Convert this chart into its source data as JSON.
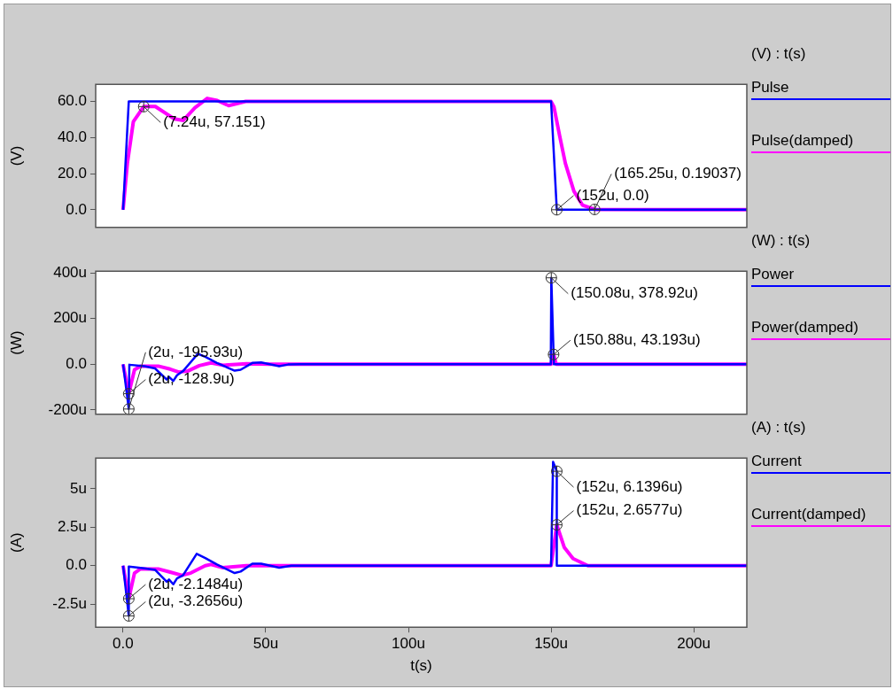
{
  "chart_data": [
    {
      "type": "line",
      "ylabel": "(V)",
      "legend_title": "(V) : t(s)",
      "legend": "right",
      "tick_labels": "y",
      "xlim": [
        -9.6,
        218.6
      ],
      "ylim": [
        -9.8,
        69.5
      ],
      "yticks": [
        {
          "value": 0,
          "label": "0.0"
        },
        {
          "value": 20,
          "label": "20.0"
        },
        {
          "value": 40,
          "label": "40.0"
        },
        {
          "value": 60,
          "label": "60.0"
        }
      ],
      "series": [
        {
          "name": "Pulse",
          "color": "#0000ff",
          "x": [
            0,
            2,
            150,
            152,
            218.6
          ],
          "values": [
            0,
            60,
            60,
            0,
            0
          ]
        },
        {
          "name": "Pulse(damped)",
          "color": "#ff00ff",
          "x": [
            0,
            1.5,
            3.6,
            7.24,
            11.3,
            18,
            21.1,
            25.2,
            29.5,
            33,
            37,
            43,
            150,
            151,
            153,
            155,
            158,
            161,
            165.25,
            218.6
          ],
          "values": [
            0,
            25.7,
            48.8,
            57.151,
            57.2,
            50.3,
            49.5,
            56.5,
            61.7,
            60.5,
            57.7,
            60,
            60,
            57,
            41,
            25.7,
            10.3,
            2.6,
            0.19037,
            0
          ]
        }
      ],
      "annotations": [
        {
          "text": "(7.24u, 57.151)",
          "x": 7.24,
          "y": 57.151
        },
        {
          "text": "(152u, 0.0)",
          "x": 152,
          "y": 0
        },
        {
          "text": "(165.25u, 0.19037)",
          "x": 165.25,
          "y": 0.19037
        }
      ]
    },
    {
      "type": "line",
      "ylabel": "(W)",
      "legend_title": "(W) : t(s)",
      "legend": "right",
      "tick_labels": "y",
      "xlim": [
        -9.6,
        218.6
      ],
      "ylim": [
        -219,
        408
      ],
      "yticks": [
        {
          "value": -200,
          "label": "-200u"
        },
        {
          "value": 0,
          "label": "0.0"
        },
        {
          "value": 200,
          "label": "200u"
        },
        {
          "value": 400,
          "label": "400u"
        }
      ],
      "series": [
        {
          "name": "Power",
          "color": "#0000ff",
          "x": [
            0,
            2,
            2.2,
            7.5,
            11.2,
            15.3,
            16.1,
            17.6,
            18.9,
            21,
            26.2,
            28.8,
            32.9,
            39.1,
            41.2,
            45.3,
            48.4,
            54.7,
            57.8,
            62,
            149.9,
            150.08,
            150.88,
            151,
            218.6
          ],
          "values": [
            0,
            -195.93,
            -2,
            -8,
            -18,
            -67,
            -55,
            -73,
            -48,
            -30,
            46,
            33,
            6,
            -28,
            -24,
            6,
            8,
            -8,
            -1,
            0,
            0,
            378.92,
            43.193,
            0,
            0
          ]
        },
        {
          "name": "Power(damped)",
          "color": "#ff00ff",
          "x": [
            0,
            2,
            4,
            6.1,
            12.3,
            16.5,
            19.5,
            22.6,
            26.7,
            30.8,
            35,
            43.2,
            51.5,
            150,
            150.88,
            151.8,
            218.6
          ],
          "values": [
            0,
            -128.9,
            -24,
            -8,
            -8,
            -21,
            -34,
            -30,
            -6,
            6,
            -4,
            2,
            0,
            0,
            43.193,
            0,
            0
          ]
        }
      ],
      "annotations": [
        {
          "text": "(150.08u, 378.92u)",
          "x": 150.08,
          "y": 378.92
        },
        {
          "text": "(150.88u, 43.193u)",
          "x": 150.88,
          "y": 43.193
        },
        {
          "text": "(2u, -128.9u)",
          "x": 2,
          "y": -128.9
        },
        {
          "text": "(2u, -195.93u)",
          "x": 2,
          "y": -195.93
        }
      ]
    },
    {
      "type": "line",
      "ylabel": "(A)",
      "xlabel": "t(s)",
      "legend_title": "(A) : t(s)",
      "legend": "right",
      "xlim": [
        -9.6,
        218.6
      ],
      "ylim": [
        -4,
        7
      ],
      "xticks": [
        {
          "value": 0,
          "label": "0.0"
        },
        {
          "value": 50,
          "label": "50u"
        },
        {
          "value": 100,
          "label": "100u"
        },
        {
          "value": 150,
          "label": "150u"
        },
        {
          "value": 200,
          "label": "200u"
        }
      ],
      "yticks": [
        {
          "value": -2.5,
          "label": "-2.5u"
        },
        {
          "value": 0,
          "label": "0.0"
        },
        {
          "value": 2.5,
          "label": "2.5u"
        },
        {
          "value": 5,
          "label": "5u"
        }
      ],
      "series": [
        {
          "name": "Current",
          "color": "#0000ff",
          "x": [
            0,
            2,
            2,
            7.5,
            11.2,
            15.3,
            16.1,
            17.6,
            18.9,
            21,
            25.8,
            28.8,
            32.9,
            39.1,
            41.2,
            45.3,
            48.4,
            54.7,
            59,
            62,
            150,
            150.7,
            152,
            152,
            218.6
          ],
          "values": [
            0,
            -3.2656,
            -0.06,
            -0.17,
            -0.27,
            -1.04,
            -0.9,
            -1.21,
            -0.83,
            -0.63,
            0.77,
            0.5,
            0.08,
            -0.48,
            -0.38,
            0.13,
            0.13,
            -0.13,
            0,
            0,
            0,
            6.75,
            6.1396,
            0,
            0
          ]
        },
        {
          "name": "Current(damped)",
          "color": "#ff00ff",
          "x": [
            0,
            2,
            4,
            6.1,
            12.3,
            16.5,
            20.6,
            23.7,
            28.8,
            30.8,
            35,
            43.2,
            150,
            152,
            154.6,
            157.7,
            162.9,
            218.6
          ],
          "values": [
            0,
            -2.1484,
            -0.48,
            -0.21,
            -0.21,
            -0.42,
            -0.63,
            -0.48,
            0,
            0.08,
            -0.13,
            0,
            0,
            2.6577,
            1.2,
            0.46,
            0,
            0
          ]
        }
      ],
      "annotations": [
        {
          "text": "(152u, 6.1396u)",
          "x": 152,
          "y": 6.1396
        },
        {
          "text": "(152u, 2.6577u)",
          "x": 152,
          "y": 2.6577
        },
        {
          "text": "(2u, -2.1484u)",
          "x": 2,
          "y": -2.1484
        },
        {
          "text": "(2u, -3.2656u)",
          "x": 2,
          "y": -3.2656
        }
      ]
    }
  ]
}
